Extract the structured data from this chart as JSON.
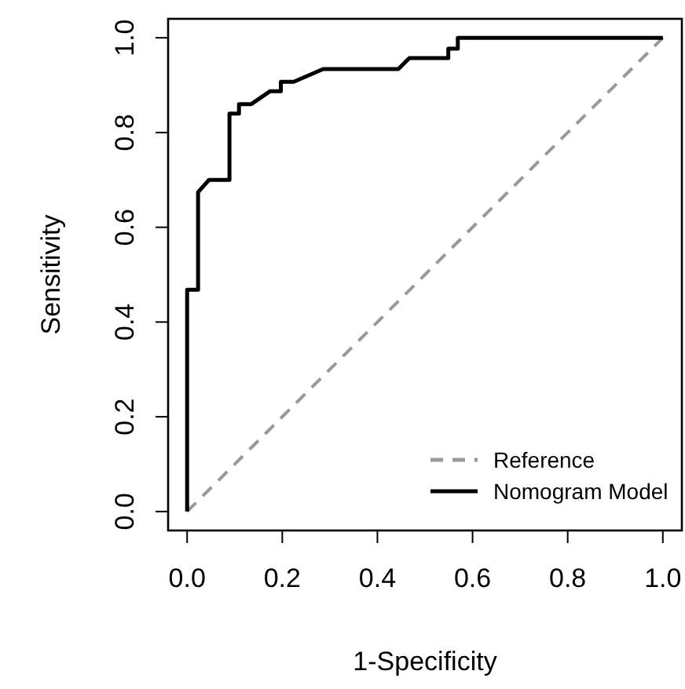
{
  "chart_data": {
    "type": "line",
    "xlabel": "1-Specificity",
    "ylabel": "Sensitivity",
    "xlim": [
      -0.04,
      1.04
    ],
    "ylim": [
      -0.04,
      1.04
    ],
    "xticks": [
      {
        "value": 0,
        "label": "0.0"
      },
      {
        "value": 0.2,
        "label": "0.2"
      },
      {
        "value": 0.4,
        "label": "0.4"
      },
      {
        "value": 0.6,
        "label": "0.6"
      },
      {
        "value": 0.8,
        "label": "0.8"
      },
      {
        "value": 1,
        "label": "1.0"
      }
    ],
    "yticks": [
      {
        "value": 0,
        "label": "0.0"
      },
      {
        "value": 0.2,
        "label": "0.2"
      },
      {
        "value": 0.4,
        "label": "0.4"
      },
      {
        "value": 0.6,
        "label": "0.6"
      },
      {
        "value": 0.8,
        "label": "0.8"
      },
      {
        "value": 1,
        "label": "1.0"
      }
    ],
    "legend": "bottom right",
    "grid": false,
    "series": [
      {
        "name": "Reference",
        "color": "#999999",
        "line_style": "dashed",
        "x": [
          0,
          1
        ],
        "values": [
          0,
          1
        ]
      },
      {
        "name": "Nomogram Model",
        "color": "#000000",
        "line_style": "solid",
        "x": [
          0,
          0,
          0.023,
          0.023,
          0.046,
          0.089,
          0.089,
          0.109,
          0.109,
          0.135,
          0.174,
          0.197,
          0.197,
          0.224,
          0.286,
          0.444,
          0.467,
          0.549,
          0.549,
          0.569,
          0.569,
          1
        ],
        "values": [
          0,
          0.468,
          0.468,
          0.674,
          0.7,
          0.7,
          0.84,
          0.84,
          0.86,
          0.86,
          0.887,
          0.887,
          0.907,
          0.907,
          0.934,
          0.934,
          0.957,
          0.957,
          0.977,
          0.977,
          1,
          1
        ]
      }
    ]
  }
}
